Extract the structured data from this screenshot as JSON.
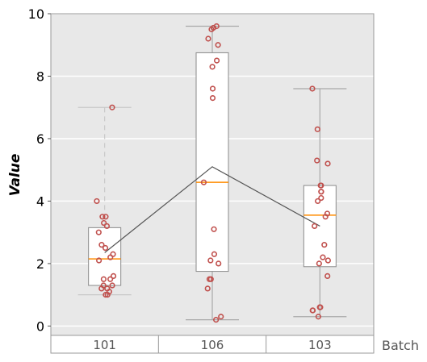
{
  "chart_data": {
    "type": "box",
    "ylabel": "Value",
    "xlabel": "Batch",
    "ylim": [
      -0.3,
      10
    ],
    "yticks": [
      "0",
      "2",
      "4",
      "6",
      "8",
      "10"
    ],
    "grid": true,
    "categories": [
      "101",
      "106",
      "103"
    ],
    "boxes": [
      {
        "category": "101",
        "whisker_low": 1.0,
        "q1": 1.3,
        "median": 2.15,
        "q3": 3.15,
        "whisker_high": 7.0,
        "mean": 2.35
      },
      {
        "category": "106",
        "whisker_low": 0.2,
        "q1": 1.75,
        "median": 4.6,
        "q3": 8.75,
        "whisker_high": 9.6,
        "mean": 5.1
      },
      {
        "category": "103",
        "whisker_low": 0.3,
        "q1": 1.9,
        "median": 3.55,
        "q3": 4.5,
        "whisker_high": 7.6,
        "mean": 3.2
      }
    ],
    "points": [
      {
        "category": "101",
        "values": [
          7.0,
          4.0,
          3.5,
          3.5,
          3.3,
          3.2,
          3.0,
          2.6,
          2.5,
          2.3,
          2.2,
          2.1,
          1.6,
          1.5,
          1.5,
          1.3,
          1.3,
          1.2,
          1.2,
          1.1,
          1.0,
          1.0
        ]
      },
      {
        "category": "106",
        "values": [
          9.6,
          9.55,
          9.5,
          9.2,
          9.0,
          8.5,
          8.3,
          7.6,
          7.3,
          4.6,
          3.1,
          2.3,
          2.1,
          2.0,
          1.5,
          1.5,
          1.2,
          0.3,
          0.2
        ]
      },
      {
        "category": "103",
        "values": [
          7.6,
          6.3,
          5.3,
          5.2,
          4.5,
          4.5,
          4.3,
          4.3,
          4.1,
          4.0,
          3.6,
          3.5,
          3.2,
          2.6,
          2.2,
          2.1,
          2.0,
          1.6,
          0.6,
          0.6,
          0.6,
          0.5,
          0.5,
          0.3
        ]
      }
    ]
  }
}
